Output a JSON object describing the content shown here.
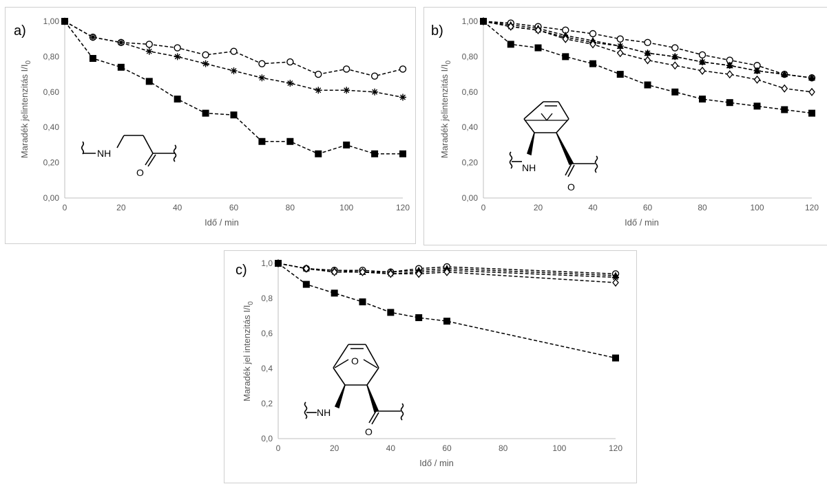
{
  "chart_data": [
    {
      "type": "line",
      "panel_label": "a)",
      "xlabel": "Idő / min",
      "ylabel": "Maradék jelintenzitás I/I₀",
      "xlim": [
        0,
        120
      ],
      "ylim": [
        0,
        1
      ],
      "x_ticks": [
        "0",
        "20",
        "40",
        "60",
        "80",
        "100",
        "120"
      ],
      "y_ticks": [
        "0,00",
        "0,20",
        "0,40",
        "0,60",
        "0,80",
        "1,00"
      ],
      "series": [
        {
          "marker": "open-circle",
          "x": [
            0,
            10,
            20,
            30,
            40,
            50,
            60,
            70,
            80,
            90,
            100,
            110,
            120
          ],
          "y": [
            1.0,
            0.91,
            0.88,
            0.87,
            0.85,
            0.81,
            0.83,
            0.76,
            0.77,
            0.7,
            0.73,
            0.69,
            0.73
          ]
        },
        {
          "marker": "asterisk",
          "x": [
            0,
            10,
            20,
            30,
            40,
            50,
            60,
            70,
            80,
            90,
            100,
            110,
            120
          ],
          "y": [
            1.0,
            0.91,
            0.88,
            0.83,
            0.8,
            0.76,
            0.72,
            0.68,
            0.65,
            0.61,
            0.61,
            0.6,
            0.57
          ]
        },
        {
          "marker": "filled-square",
          "x": [
            0,
            10,
            20,
            30,
            40,
            50,
            60,
            70,
            80,
            90,
            100,
            110,
            120
          ],
          "y": [
            1.0,
            0.79,
            0.74,
            0.66,
            0.56,
            0.48,
            0.47,
            0.32,
            0.32,
            0.25,
            0.3,
            0.25,
            0.25
          ]
        }
      ],
      "structure": {
        "labels": [
          "NH",
          "O"
        ]
      }
    },
    {
      "type": "line",
      "panel_label": "b)",
      "xlabel": "Idő / min",
      "ylabel": "Maradék jelintenzitás I/I₀",
      "xlim": [
        0,
        120
      ],
      "ylim": [
        0,
        1
      ],
      "x_ticks": [
        "0",
        "20",
        "40",
        "60",
        "80",
        "100",
        "120"
      ],
      "y_ticks": [
        "0,00",
        "0,20",
        "0,40",
        "0,60",
        "0,80",
        "1,00"
      ],
      "series": [
        {
          "marker": "open-circle",
          "x": [
            0,
            10,
            20,
            30,
            40,
            50,
            60,
            70,
            80,
            90,
            100,
            110,
            120
          ],
          "y": [
            1.0,
            0.99,
            0.97,
            0.95,
            0.93,
            0.9,
            0.88,
            0.85,
            0.81,
            0.78,
            0.75,
            0.7,
            0.68
          ]
        },
        {
          "marker": "filled-triangle",
          "x": [
            0,
            10,
            20,
            30,
            40,
            50,
            60,
            70,
            80,
            90,
            100,
            110,
            120
          ],
          "y": [
            1.0,
            0.98,
            0.96,
            0.92,
            0.89,
            0.86,
            0.82,
            0.8,
            0.77,
            0.75,
            0.72,
            0.7,
            0.68
          ]
        },
        {
          "marker": "asterisk",
          "x": [
            0,
            10,
            20,
            30,
            40,
            50,
            60,
            70,
            80,
            90,
            100,
            110,
            120
          ],
          "y": [
            1.0,
            0.97,
            0.95,
            0.91,
            0.88,
            0.86,
            0.82,
            0.8,
            0.77,
            0.75,
            0.72,
            0.7,
            0.68
          ]
        },
        {
          "marker": "open-diamond",
          "x": [
            0,
            10,
            20,
            30,
            40,
            50,
            60,
            70,
            80,
            90,
            100,
            110,
            120
          ],
          "y": [
            1.0,
            0.97,
            0.95,
            0.9,
            0.87,
            0.82,
            0.78,
            0.75,
            0.72,
            0.7,
            0.67,
            0.62,
            0.6
          ]
        },
        {
          "marker": "filled-square",
          "x": [
            0,
            10,
            20,
            30,
            40,
            50,
            60,
            70,
            80,
            90,
            100,
            110,
            120
          ],
          "y": [
            1.0,
            0.87,
            0.85,
            0.8,
            0.76,
            0.7,
            0.64,
            0.6,
            0.56,
            0.54,
            0.52,
            0.5,
            0.48
          ]
        }
      ],
      "structure": {
        "labels": [
          "NH",
          "O"
        ]
      }
    },
    {
      "type": "line",
      "panel_label": "c)",
      "xlabel": "Idő / min",
      "ylabel": "Maradék jel intenzitás I/I₀",
      "xlim": [
        0,
        120
      ],
      "ylim": [
        0,
        1
      ],
      "x_ticks": [
        "0",
        "20",
        "40",
        "60",
        "80",
        "100",
        "120"
      ],
      "y_ticks": [
        "0,0",
        "0,2",
        "0,4",
        "0,6",
        "0,8",
        "1,0"
      ],
      "series": [
        {
          "marker": "open-circle",
          "x": [
            0,
            10,
            20,
            30,
            40,
            50,
            60,
            120
          ],
          "y": [
            1.0,
            0.97,
            0.96,
            0.96,
            0.95,
            0.97,
            0.98,
            0.94
          ]
        },
        {
          "marker": "filled-triangle",
          "x": [
            0,
            10,
            20,
            30,
            40,
            50,
            60,
            120
          ],
          "y": [
            1.0,
            0.97,
            0.96,
            0.95,
            0.95,
            0.96,
            0.97,
            0.93
          ]
        },
        {
          "marker": "asterisk",
          "x": [
            0,
            10,
            20,
            30,
            40,
            50,
            60,
            120
          ],
          "y": [
            1.0,
            0.97,
            0.95,
            0.95,
            0.94,
            0.95,
            0.96,
            0.92
          ]
        },
        {
          "marker": "open-diamond",
          "x": [
            0,
            10,
            20,
            30,
            40,
            50,
            60,
            120
          ],
          "y": [
            1.0,
            0.97,
            0.95,
            0.95,
            0.94,
            0.94,
            0.95,
            0.89
          ]
        },
        {
          "marker": "filled-square",
          "x": [
            0,
            10,
            20,
            30,
            40,
            50,
            60,
            120
          ],
          "y": [
            1.0,
            0.88,
            0.83,
            0.78,
            0.72,
            0.69,
            0.67,
            0.46
          ]
        }
      ],
      "structure": {
        "labels": [
          "NH",
          "O",
          "O"
        ]
      }
    }
  ]
}
